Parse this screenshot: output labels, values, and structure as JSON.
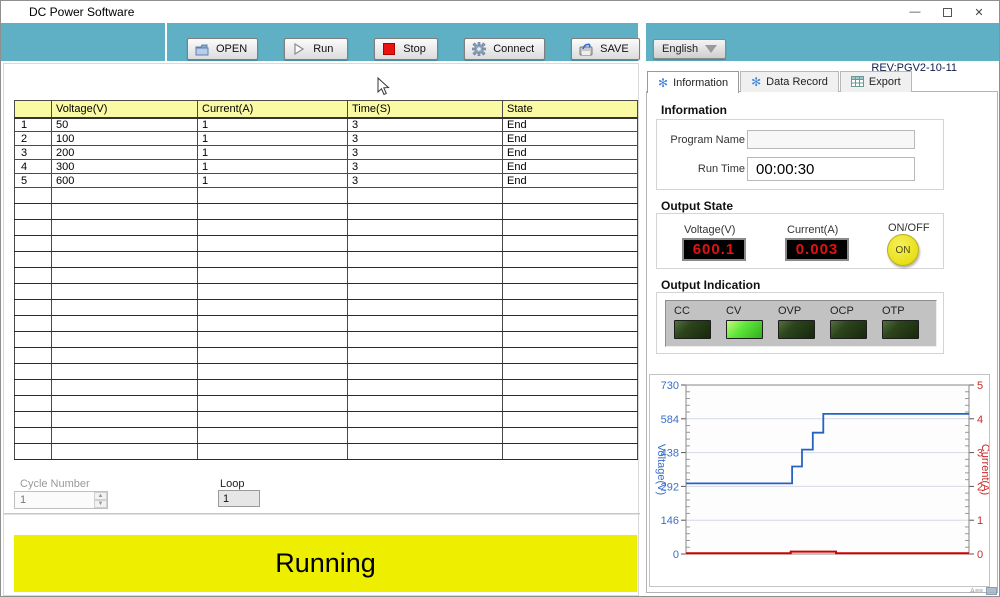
{
  "colors": {
    "toolbar_teal": "#5fafc5",
    "banner_yellow": "#eeee00",
    "table_header_yellow": "#fafaa5",
    "display_red": "#e01212",
    "led_on_green": "#62e83c",
    "on_button_yellow": "#e9df17"
  },
  "window": {
    "title": "DC Power Software",
    "minimize_glyph": "—",
    "close_glyph": "✕"
  },
  "toolbar": {
    "buttons": [
      {
        "label": "OPEN",
        "icon": "folder-open-icon"
      },
      {
        "label": "Run",
        "icon": "play-icon"
      },
      {
        "label": "Stop",
        "icon": "stop-icon"
      },
      {
        "label": "Connect",
        "icon": "gear-icon"
      },
      {
        "label": "SAVE",
        "icon": "save-icon"
      }
    ],
    "language_selector": {
      "label": "English",
      "icon": "dropdown-arrow-icon"
    },
    "revision": "REV:PGV2-10-11"
  },
  "program_table": {
    "headers": [
      "Voltage(V)",
      "Current(A)",
      "Time(S)",
      "State"
    ],
    "rows": [
      {
        "index": "1",
        "cells": [
          "50",
          "1",
          "3",
          "End"
        ]
      },
      {
        "index": "2",
        "cells": [
          "100",
          "1",
          "3",
          "End"
        ]
      },
      {
        "index": "3",
        "cells": [
          "200",
          "1",
          "3",
          "End"
        ]
      },
      {
        "index": "4",
        "cells": [
          "300",
          "1",
          "3",
          "End"
        ]
      },
      {
        "index": "5",
        "cells": [
          "600",
          "1",
          "3",
          "End"
        ]
      }
    ],
    "empty_row_count": 17
  },
  "cycle": {
    "label": "Cycle Number",
    "value": "1"
  },
  "loop": {
    "label": "Loop",
    "value": "1"
  },
  "status_banner": "Running",
  "tabs": [
    {
      "label": "Information",
      "icon": "snowflake-icon",
      "active": true
    },
    {
      "label": "Data Record",
      "icon": "snowflake-icon",
      "active": false
    },
    {
      "label": "Export",
      "icon": "table-icon",
      "active": false
    }
  ],
  "information": {
    "title": "Information",
    "program_name_label": "Program Name",
    "program_name_value": "",
    "run_time_label": "Run Time",
    "run_time_value": "00:00:30"
  },
  "output_state": {
    "title": "Output State",
    "voltage_label": "Voltage(V)",
    "voltage_value": "600.1",
    "current_label": "Current(A)",
    "current_value": "0.003",
    "onoff_label": "ON/OFF",
    "onoff_value": "ON"
  },
  "output_indication": {
    "title": "Output Indication",
    "leds": [
      {
        "label": "CC",
        "on": false
      },
      {
        "label": "CV",
        "on": true
      },
      {
        "label": "OVP",
        "on": false
      },
      {
        "label": "OCP",
        "on": false
      },
      {
        "label": "OTP",
        "on": false
      }
    ]
  },
  "chart_data": {
    "type": "line",
    "title": "",
    "grid": true,
    "legend": "none",
    "x_axis": {
      "label": "",
      "range": [
        0,
        1
      ],
      "ticks_visible": false
    },
    "y_left": {
      "label": "Voltage(V)",
      "range": [
        0,
        730
      ],
      "ticks": [
        0,
        146,
        292,
        438,
        584,
        730
      ],
      "minor_per_major": 5,
      "color": "#3a6ec8"
    },
    "y_right": {
      "label": "Current(A)",
      "range": [
        0,
        5
      ],
      "ticks": [
        0,
        1,
        2,
        3,
        4,
        5
      ],
      "minor_per_major": 5,
      "color": "#cc2a2a"
    },
    "series": [
      {
        "name": "Voltage",
        "axis": "left",
        "color": "#2563c0",
        "width": 1.8,
        "points": [
          [
            0,
            305
          ],
          [
            0.375,
            305
          ],
          [
            0.375,
            378
          ],
          [
            0.41,
            378
          ],
          [
            0.41,
            451
          ],
          [
            0.448,
            451
          ],
          [
            0.448,
            524
          ],
          [
            0.485,
            524
          ],
          [
            0.485,
            605
          ],
          [
            1,
            605
          ]
        ]
      },
      {
        "name": "Current",
        "axis": "right",
        "color": "#cc0000",
        "width": 2,
        "points": [
          [
            0,
            0.02
          ],
          [
            0.37,
            0.02
          ],
          [
            0.37,
            0.07
          ],
          [
            0.53,
            0.07
          ],
          [
            0.53,
            0.02
          ],
          [
            1,
            0.02
          ]
        ]
      }
    ]
  }
}
